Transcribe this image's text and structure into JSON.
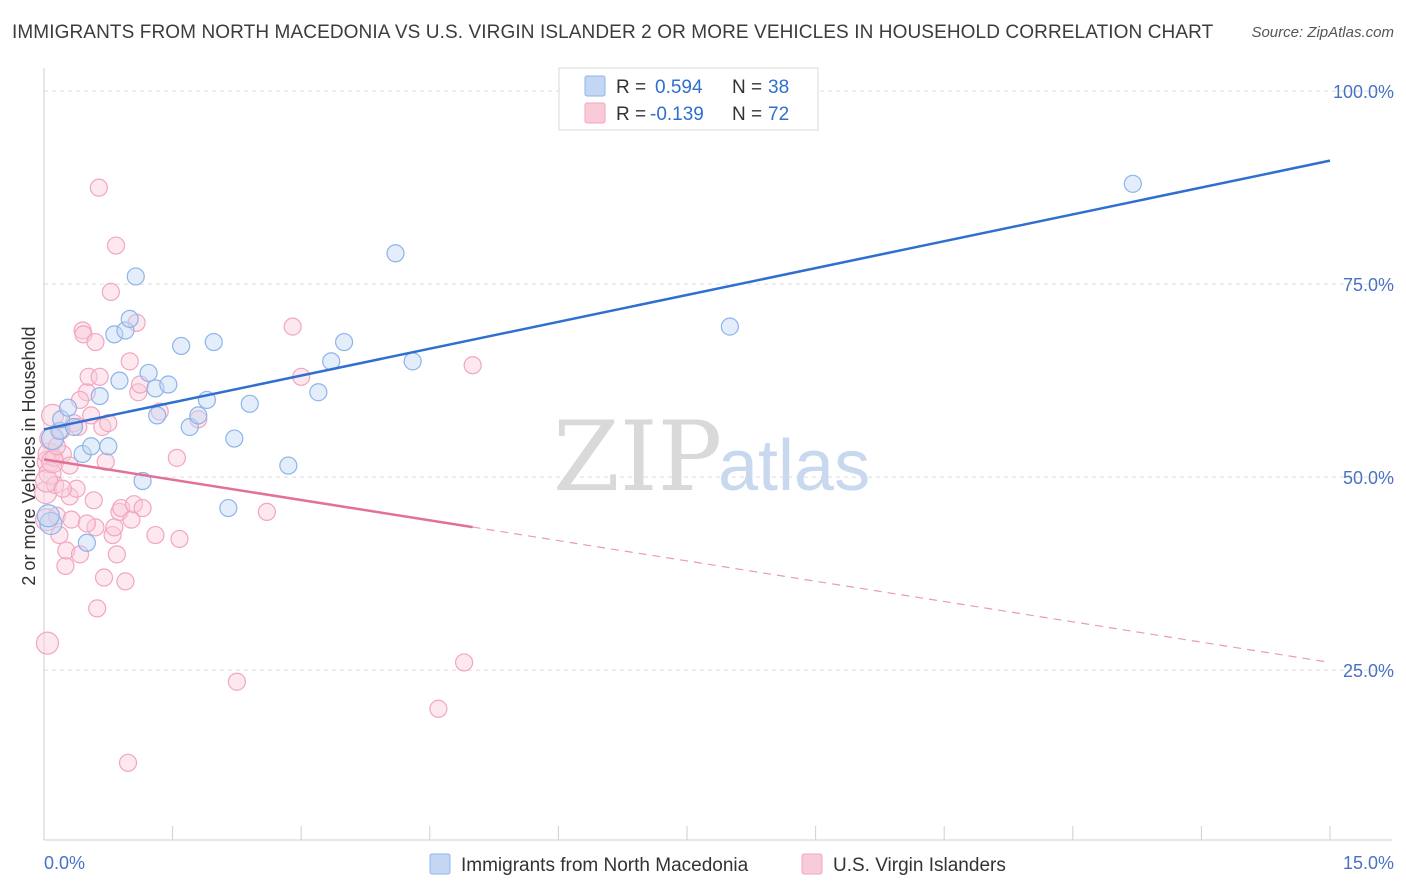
{
  "title": "IMMIGRANTS FROM NORTH MACEDONIA VS U.S. VIRGIN ISLANDER 2 OR MORE VEHICLES IN HOUSEHOLD CORRELATION CHART",
  "source": "Source: ZipAtlas.com",
  "watermark": {
    "zip": "ZIP",
    "atlas": "atlas"
  },
  "legend": {
    "rows": [
      {
        "r_label": "R =",
        "r_value": "0.594",
        "n_label": "N =",
        "n_value": "38"
      },
      {
        "r_label": "R =",
        "r_value": "-0.139",
        "n_label": "N =",
        "n_value": "72"
      }
    ]
  },
  "chart_data": {
    "type": "scatter",
    "title": "IMMIGRANTS FROM NORTH MACEDONIA VS U.S. VIRGIN ISLANDER 2 OR MORE VEHICLES IN HOUSEHOLD CORRELATION CHART",
    "xlabel": "",
    "ylabel": "2 or more Vehicles in Household",
    "xlim": [
      0,
      15
    ],
    "ylim": [
      3,
      103
    ],
    "x_tick_labels": [
      "0.0%",
      "15.0%"
    ],
    "y_ticks": [
      25,
      50,
      75,
      100
    ],
    "y_tick_labels": [
      "25.0%",
      "50.0%",
      "75.0%",
      "100.0%"
    ],
    "grid": true,
    "colors": {
      "blue": "#8db4ea",
      "blue_line": "#2f6fcf",
      "pink": "#f2a6bf",
      "pink_line": "#e0719a",
      "tick": "#4a72c4"
    },
    "series": [
      {
        "name": "Immigrants from North Macedonia",
        "color": "#8db4ea",
        "r": 0.594,
        "n": 38,
        "trend": {
          "x0": 0.0,
          "y0": 56.2,
          "x1": 15.0,
          "y1": 91.0,
          "dashed_from": null
        },
        "points": [
          [
            0.08,
            44.0
          ],
          [
            0.1,
            55.0
          ],
          [
            0.18,
            56.0
          ],
          [
            0.2,
            57.5
          ],
          [
            0.28,
            59.0
          ],
          [
            0.35,
            56.5
          ],
          [
            0.45,
            53.0
          ],
          [
            0.5,
            41.5
          ],
          [
            0.55,
            54.0
          ],
          [
            0.65,
            60.5
          ],
          [
            0.75,
            54.0
          ],
          [
            0.82,
            68.5
          ],
          [
            0.88,
            62.5
          ],
          [
            0.95,
            69.0
          ],
          [
            1.0,
            70.5
          ],
          [
            1.07,
            76.0
          ],
          [
            1.15,
            49.5
          ],
          [
            1.22,
            63.5
          ],
          [
            1.3,
            61.5
          ],
          [
            1.32,
            58.0
          ],
          [
            1.45,
            62.0
          ],
          [
            1.6,
            67.0
          ],
          [
            1.7,
            56.5
          ],
          [
            1.8,
            58.0
          ],
          [
            1.9,
            60.0
          ],
          [
            1.98,
            67.5
          ],
          [
            2.15,
            46.0
          ],
          [
            2.22,
            55.0
          ],
          [
            2.4,
            59.5
          ],
          [
            2.85,
            51.5
          ],
          [
            3.2,
            61.0
          ],
          [
            3.35,
            65.0
          ],
          [
            3.5,
            67.5
          ],
          [
            4.1,
            79.0
          ],
          [
            4.3,
            65.0
          ],
          [
            8.0,
            69.5
          ],
          [
            12.7,
            88.0
          ],
          [
            0.05,
            45.0
          ]
        ]
      },
      {
        "name": "U.S. Virgin Islanders",
        "color": "#f2a6bf",
        "r": -0.139,
        "n": 72,
        "trend": {
          "x0": 0.0,
          "y0": 52.3,
          "x1": 15.0,
          "y1": 26.0,
          "dashed_from": 5.0
        },
        "points": [
          [
            0.02,
            48.0
          ],
          [
            0.03,
            44.5
          ],
          [
            0.04,
            28.5
          ],
          [
            0.05,
            52.0
          ],
          [
            0.06,
            53.0
          ],
          [
            0.07,
            50.5
          ],
          [
            0.08,
            55.0
          ],
          [
            0.1,
            58.0
          ],
          [
            0.12,
            52.5
          ],
          [
            0.13,
            49.0
          ],
          [
            0.15,
            45.0
          ],
          [
            0.18,
            42.5
          ],
          [
            0.2,
            56.0
          ],
          [
            0.22,
            53.0
          ],
          [
            0.25,
            38.5
          ],
          [
            0.26,
            40.5
          ],
          [
            0.3,
            47.5
          ],
          [
            0.32,
            44.5
          ],
          [
            0.35,
            57.0
          ],
          [
            0.38,
            48.5
          ],
          [
            0.4,
            56.5
          ],
          [
            0.42,
            40.0
          ],
          [
            0.45,
            69.0
          ],
          [
            0.46,
            68.5
          ],
          [
            0.5,
            61.0
          ],
          [
            0.52,
            63.0
          ],
          [
            0.55,
            58.0
          ],
          [
            0.58,
            47.0
          ],
          [
            0.6,
            43.5
          ],
          [
            0.6,
            67.5
          ],
          [
            0.62,
            33.0
          ],
          [
            0.64,
            87.5
          ],
          [
            0.65,
            63.0
          ],
          [
            0.68,
            56.5
          ],
          [
            0.7,
            37.0
          ],
          [
            0.72,
            52.0
          ],
          [
            0.75,
            57.0
          ],
          [
            0.78,
            74.0
          ],
          [
            0.8,
            42.5
          ],
          [
            0.82,
            43.5
          ],
          [
            0.84,
            80.0
          ],
          [
            0.85,
            40.0
          ],
          [
            0.88,
            45.5
          ],
          [
            0.9,
            46.0
          ],
          [
            0.95,
            36.5
          ],
          [
            0.98,
            13.0
          ],
          [
            1.0,
            65.0
          ],
          [
            1.02,
            44.5
          ],
          [
            1.05,
            46.5
          ],
          [
            1.08,
            70.0
          ],
          [
            1.1,
            61.0
          ],
          [
            1.12,
            62.0
          ],
          [
            1.15,
            46.0
          ],
          [
            1.3,
            42.5
          ],
          [
            1.35,
            58.5
          ],
          [
            1.55,
            52.5
          ],
          [
            1.58,
            42.0
          ],
          [
            1.8,
            57.5
          ],
          [
            2.25,
            23.5
          ],
          [
            2.6,
            45.5
          ],
          [
            2.9,
            69.5
          ],
          [
            3.0,
            63.0
          ],
          [
            4.6,
            20.0
          ],
          [
            4.9,
            26.0
          ],
          [
            5.0,
            64.5
          ],
          [
            0.03,
            49.5
          ],
          [
            0.1,
            52.0
          ],
          [
            0.22,
            48.5
          ],
          [
            0.5,
            44.0
          ],
          [
            0.3,
            51.5
          ],
          [
            0.42,
            60.0
          ],
          [
            0.15,
            54.0
          ]
        ]
      }
    ],
    "legend_position": "top-center",
    "bottom_legend": [
      "Immigrants from North Macedonia",
      "U.S. Virgin Islanders"
    ]
  }
}
